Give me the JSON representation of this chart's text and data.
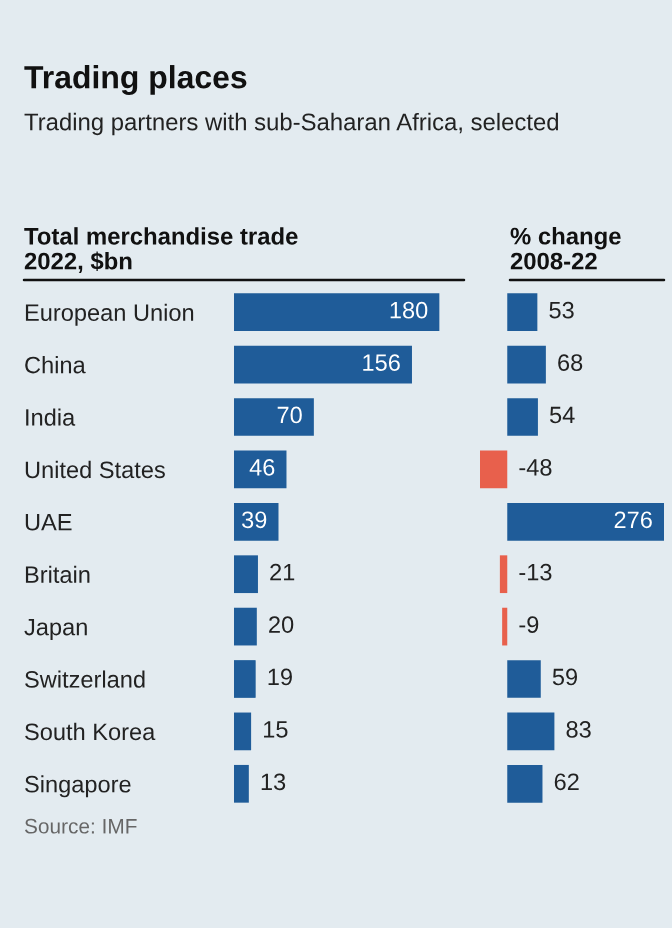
{
  "chart_data": [
    {
      "type": "bar",
      "orientation": "horizontal",
      "title": "Trading places",
      "subtitle": "Trading partners with sub-Saharan Africa, selected",
      "xlabel": "Total merchandise trade\n2022, $bn",
      "categories": [
        "European Union",
        "China",
        "India",
        "United States",
        "UAE",
        "Britain",
        "Japan",
        "Switzerland",
        "South Korea",
        "Singapore"
      ],
      "values": [
        180,
        156,
        70,
        46,
        39,
        21,
        20,
        19,
        15,
        13
      ],
      "color": "#1f5c99",
      "data_labels": true,
      "tick_labels": "y",
      "grid": false,
      "annotations": [
        "Source: IMF"
      ]
    },
    {
      "type": "bar",
      "orientation": "horizontal",
      "xlabel": "% change\n2008-22",
      "categories": [
        null,
        null,
        null,
        null,
        null,
        null,
        null,
        null,
        null,
        null
      ],
      "values": [
        53,
        68,
        54,
        -48,
        276,
        -13,
        -9,
        59,
        83,
        62
      ],
      "colors": [
        "#1f5c99",
        "#1f5c99",
        "#1f5c99",
        "#e8604c",
        "#1f5c99",
        "#e8604c",
        "#e8604c",
        "#1f5c99",
        "#1f5c99",
        "#1f5c99"
      ],
      "data_labels": true,
      "tick_labels": false,
      "grid": false
    }
  ]
}
